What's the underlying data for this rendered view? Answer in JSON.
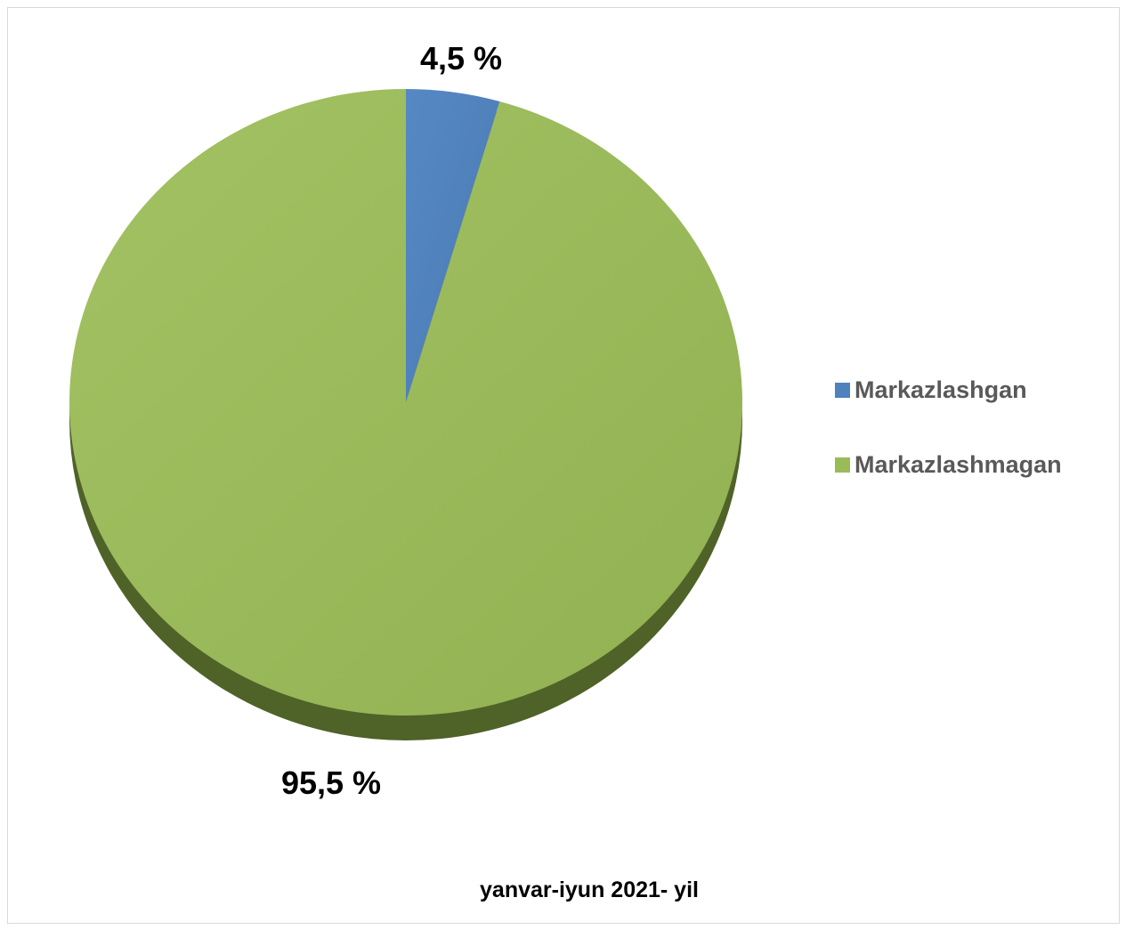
{
  "chart_data": {
    "type": "pie",
    "categories": [
      "Markazlashgan",
      "Markazlashmagan"
    ],
    "values": [
      4.5,
      95.5
    ],
    "data_labels": [
      "4,5 %",
      "95,5 %"
    ],
    "colors": [
      "#4f81bd",
      "#9bbb59"
    ],
    "legend": {
      "position": "right",
      "entries": [
        "Markazlashgan",
        "Markazlashmagan"
      ]
    },
    "caption": "yanvar-iyun 2021- yil",
    "start_angle": "top",
    "direction": "clockwise",
    "style": "3d-tilted"
  }
}
